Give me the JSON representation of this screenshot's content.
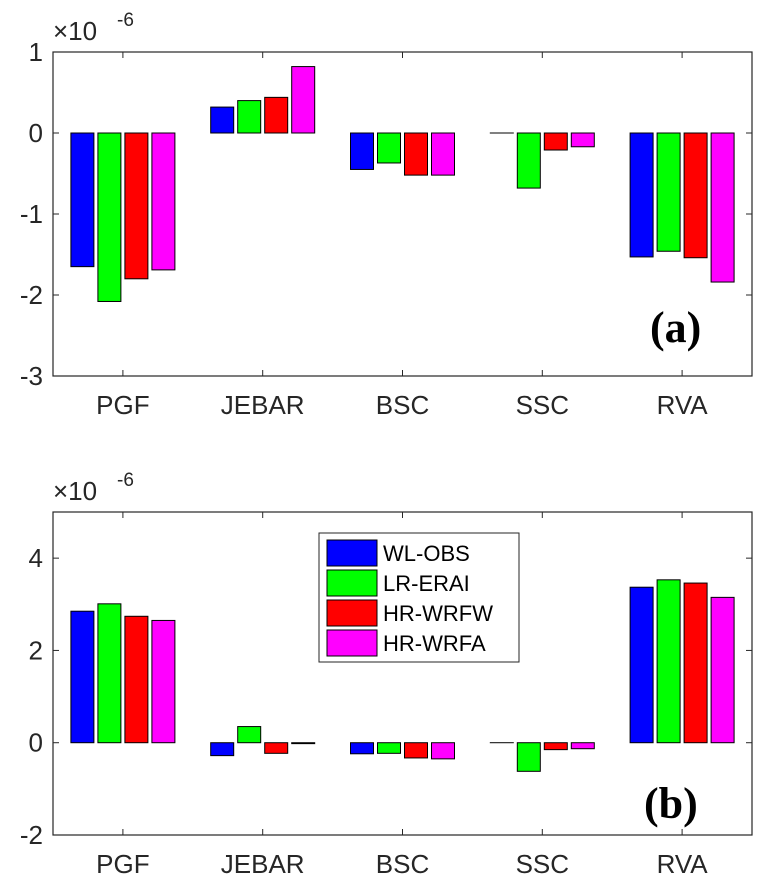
{
  "chart_data": [
    {
      "type": "bar",
      "panel_label": "(a)",
      "exponent_base": "×10",
      "exponent_power": "-6",
      "categories": [
        "PGF",
        "JEBAR",
        "BSC",
        "SSC",
        "RVA"
      ],
      "series": [
        {
          "name": "WL-OBS",
          "color": "#0000ff",
          "values": [
            -1.65,
            0.32,
            -0.45,
            0.0,
            -1.53
          ]
        },
        {
          "name": "LR-ERAI",
          "color": "#00ff00",
          "values": [
            -2.08,
            0.4,
            -0.37,
            -0.68,
            -1.46
          ]
        },
        {
          "name": "HR-WRFW",
          "color": "#ff0000",
          "values": [
            -1.8,
            0.44,
            -0.52,
            -0.21,
            -1.54
          ]
        },
        {
          "name": "HR-WRFA",
          "color": "#ff00ff",
          "values": [
            -1.69,
            0.82,
            -0.52,
            -0.17,
            -1.84
          ]
        }
      ],
      "ylim": [
        -3,
        1
      ],
      "yticks": [
        "-3",
        "-2",
        "-1",
        "0",
        "1"
      ],
      "xlabel": "",
      "ylabel": "",
      "legend": false
    },
    {
      "type": "bar",
      "panel_label": "(b)",
      "exponent_base": "×10",
      "exponent_power": "-6",
      "categories": [
        "PGF",
        "JEBAR",
        "BSC",
        "SSC",
        "RVA"
      ],
      "series": [
        {
          "name": "WL-OBS",
          "color": "#0000ff",
          "values": [
            2.85,
            -0.28,
            -0.24,
            0.0,
            3.37
          ]
        },
        {
          "name": "LR-ERAI",
          "color": "#00ff00",
          "values": [
            3.01,
            0.35,
            -0.23,
            -0.62,
            3.53
          ]
        },
        {
          "name": "HR-WRFW",
          "color": "#ff0000",
          "values": [
            2.74,
            -0.23,
            -0.33,
            -0.15,
            3.46
          ]
        },
        {
          "name": "HR-WRFA",
          "color": "#ff00ff",
          "values": [
            2.65,
            -0.02,
            -0.35,
            -0.13,
            3.15
          ]
        }
      ],
      "ylim": [
        -2,
        5
      ],
      "yticks": [
        "-2",
        "0",
        "2",
        "4"
      ],
      "xlabel": "",
      "ylabel": "",
      "legend": true,
      "legend_position": "top-center"
    }
  ]
}
